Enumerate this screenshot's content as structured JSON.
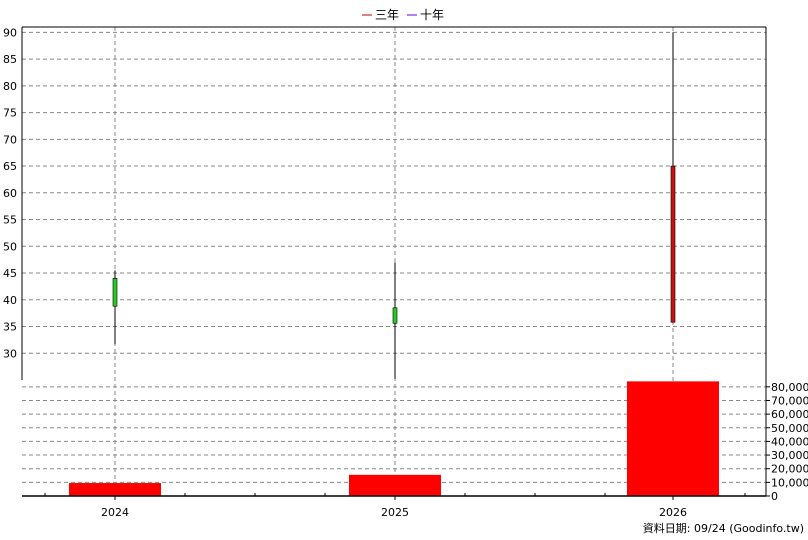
{
  "legend": [
    {
      "name": "三年",
      "color": "#cc0000"
    },
    {
      "name": "十年",
      "color": "#6600cc"
    }
  ],
  "footer": "資料日期: 09/24  (Goodinfo.tw)",
  "colors": {
    "up_candle": "#cc1111",
    "down_candle": "#22cc22",
    "volume_bar": "#ff0000",
    "grid": "#888888",
    "border": "#000000"
  },
  "chart_data": [
    {
      "type": "candlestick",
      "categories": [
        "2024",
        "2025",
        "2026"
      ],
      "ohlc": [
        {
          "open": 44,
          "high": 45.5,
          "low": 31.7,
          "close": 38.8
        },
        {
          "open": 38.5,
          "high": 47,
          "low": 25.2,
          "close": 35.6
        },
        {
          "open": 35.8,
          "high": 90,
          "low": 35.8,
          "close": 65
        }
      ],
      "ylim": [
        25,
        91
      ],
      "yticks": [
        30,
        35,
        40,
        45,
        50,
        55,
        60,
        65,
        70,
        75,
        80,
        85,
        90
      ],
      "grid": true,
      "legend_position": "top-center"
    },
    {
      "type": "bar",
      "categories": [
        "2024",
        "2025",
        "2026"
      ],
      "values": [
        9500,
        15500,
        84000
      ],
      "ylim": [
        0,
        85000
      ],
      "yticks": [
        0,
        10000,
        20000,
        30000,
        40000,
        50000,
        60000,
        70000,
        80000
      ],
      "ytick_labels": [
        "0",
        "10,000",
        "20,000",
        "30,000",
        "40,000",
        "50,000",
        "60,000",
        "70,000",
        "80,000"
      ],
      "y_axis_side": "right",
      "grid": true
    }
  ]
}
